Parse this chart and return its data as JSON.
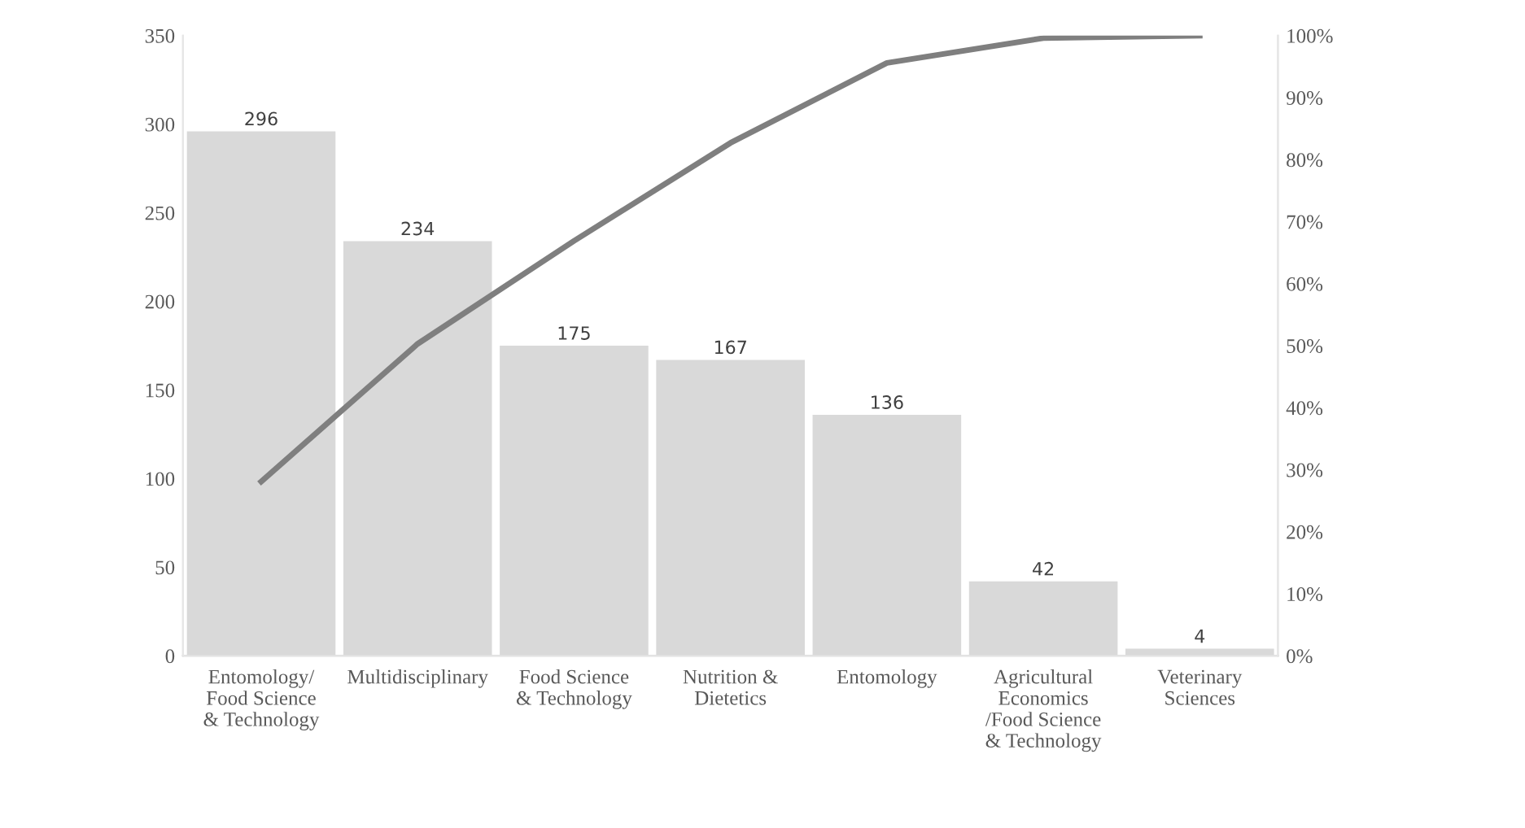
{
  "chart_data": {
    "type": "bar",
    "categories": [
      "Entomology/\nFood Science\n& Technology",
      "Multidisciplinary",
      "Food Science\n& Technology",
      "Nutrition &\nDietetics",
      "Entomology",
      "Agricultural\nEconomics\n/Food Science\n& Technology",
      "Veterinary\nSciences"
    ],
    "series": [
      {
        "color": "#d9d9d9",
        "values": [
          296,
          234,
          175,
          167,
          136,
          42,
          4
        ],
        "value_labels": [
          "296",
          "234",
          "175",
          "167",
          "136",
          "42",
          "4"
        ]
      },
      {
        "type": "line",
        "axis": "y2",
        "color": "#7f7f7f",
        "values": [
          28.1,
          50.3,
          66.9,
          82.7,
          95.6,
          99.6,
          100
        ]
      }
    ],
    "ylim": [
      0,
      350
    ],
    "yticks": [
      0,
      50,
      100,
      150,
      200,
      250,
      300,
      350
    ],
    "y2lim": [
      0,
      100
    ],
    "y2ticks": [
      {
        "value": 0,
        "label": "0%"
      },
      {
        "value": 10,
        "label": "10%"
      },
      {
        "value": 20,
        "label": "20%"
      },
      {
        "value": 30,
        "label": "30%"
      },
      {
        "value": 40,
        "label": "40%"
      },
      {
        "value": 50,
        "label": "50%"
      },
      {
        "value": 60,
        "label": "60%"
      },
      {
        "value": 70,
        "label": "70%"
      },
      {
        "value": 80,
        "label": "80%"
      },
      {
        "value": 90,
        "label": "90%"
      },
      {
        "value": 100,
        "label": "100%"
      }
    ],
    "grid": false,
    "legend": false,
    "marker": "none",
    "line_style": "solid"
  }
}
